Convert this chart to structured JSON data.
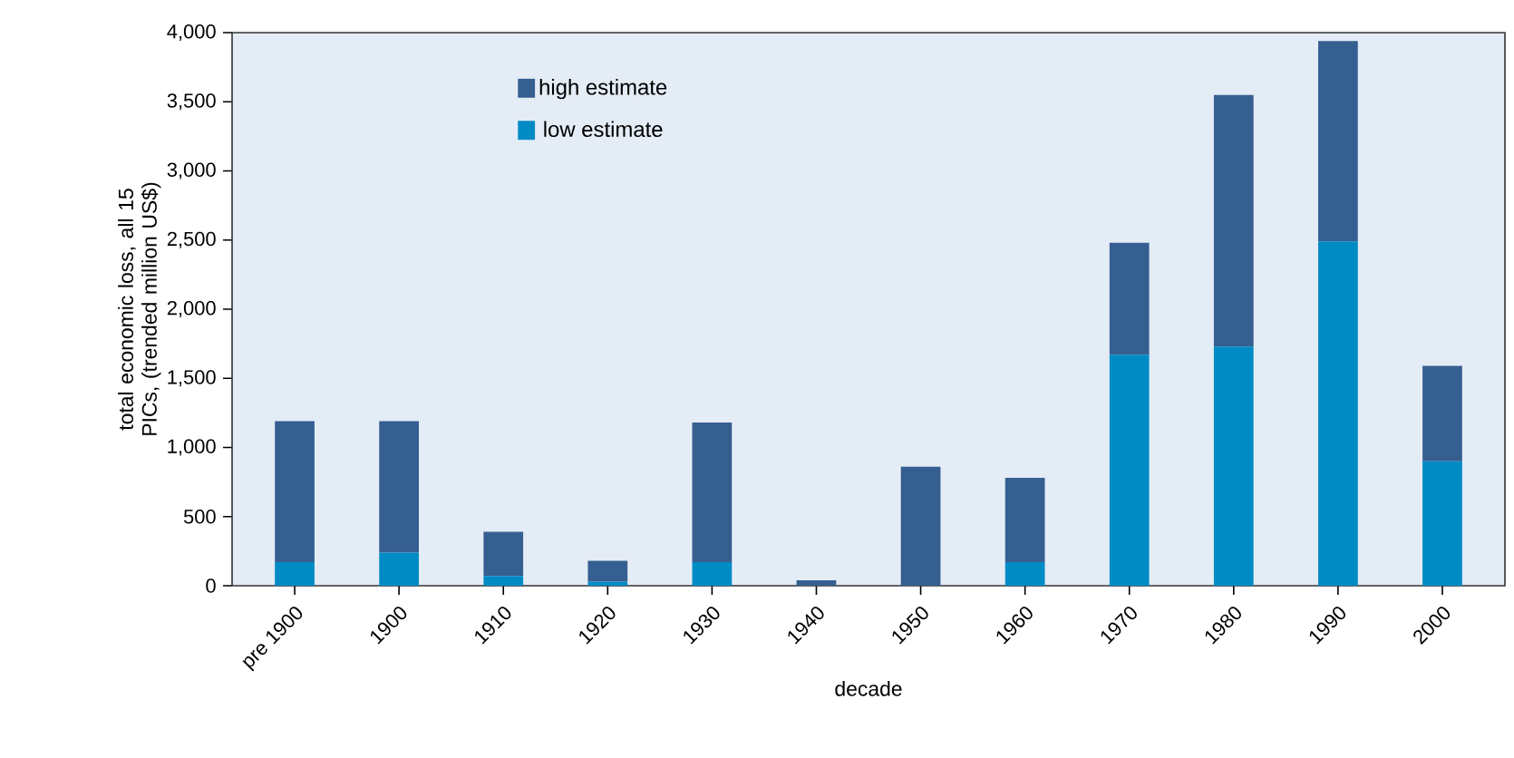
{
  "chart_data": {
    "type": "bar",
    "stacked": true,
    "categories": [
      "pre 1900",
      "1900",
      "1910",
      "1920",
      "1930",
      "1940",
      "1950",
      "1960",
      "1970",
      "1980",
      "1990",
      "2000"
    ],
    "series": [
      {
        "name": "low estimate",
        "color": "#008bc5",
        "values": [
          170,
          240,
          70,
          30,
          170,
          0,
          0,
          170,
          1670,
          1730,
          2490,
          900
        ]
      },
      {
        "name": "high estimate",
        "color": "#365f91",
        "values": [
          1020,
          950,
          320,
          150,
          1010,
          40,
          860,
          610,
          810,
          1820,
          1450,
          690
        ]
      }
    ],
    "xlabel": "decade",
    "ylabel": "total economic loss, all 15 PICs, (trended million US$)",
    "ylim": [
      0,
      4000
    ],
    "yticks": [
      0,
      500,
      {
        "value": 1000,
        "label": "1,000"
      },
      {
        "value": 1500,
        "label": "1,500"
      },
      {
        "value": 2000,
        "label": "2,000"
      },
      {
        "value": 2500,
        "label": "2,500"
      },
      {
        "value": 3000,
        "label": "3,000"
      },
      {
        "value": 3500,
        "label": "3,500"
      },
      {
        "value": 4000,
        "label": "4,000"
      }
    ],
    "legend": "top left",
    "grid": false
  }
}
